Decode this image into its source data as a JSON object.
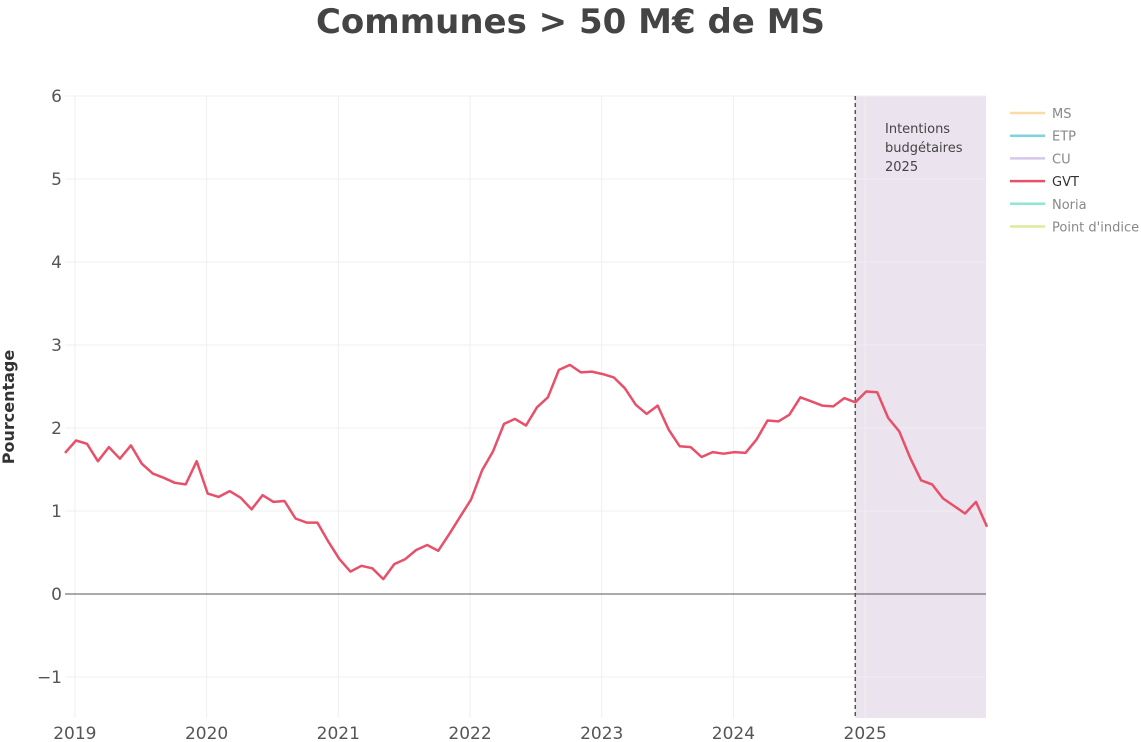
{
  "chart_data": {
    "type": "line",
    "title": "Communes > 50 M€ de MS",
    "xlabel": "",
    "ylabel": "Pourcentage",
    "x_ticks": [
      "2019",
      "2020",
      "2021",
      "2022",
      "2023",
      "2024",
      "2025"
    ],
    "y_ticks": [
      "−1",
      "0",
      "1",
      "2",
      "3",
      "4",
      "5",
      "6"
    ],
    "ylim": [
      -1.5,
      6
    ],
    "xlim": [
      "2018-12",
      "2025-12"
    ],
    "grid": true,
    "legend_position": "right",
    "legend": [
      {
        "name": "MS",
        "color": "#fcd9a8",
        "active": false
      },
      {
        "name": "ETP",
        "color": "#7fd3de",
        "active": false
      },
      {
        "name": "CU",
        "color": "#d5c8e8",
        "active": false
      },
      {
        "name": "GVT",
        "color": "#e8506a",
        "active": true
      },
      {
        "name": "Noria",
        "color": "#8ee6d8",
        "active": false
      },
      {
        "name": "Point d'indice",
        "color": "#dcea9c",
        "active": false
      }
    ],
    "annotation": {
      "lines": [
        "Intentions",
        "budgétaires",
        "2025"
      ],
      "start": "2024-12",
      "end": "2025-12",
      "shade_color": "#ebe3ee"
    },
    "series": [
      {
        "name": "GVT",
        "color": "#e8506a",
        "x": [
          "2018-12",
          "2019-01",
          "2019-02",
          "2019-03",
          "2019-04",
          "2019-05",
          "2019-06",
          "2019-07",
          "2019-08",
          "2019-09",
          "2019-10",
          "2019-11",
          "2019-12",
          "2020-01",
          "2020-02",
          "2020-03",
          "2020-04",
          "2020-05",
          "2020-06",
          "2020-07",
          "2020-08",
          "2020-09",
          "2020-10",
          "2020-11",
          "2020-12",
          "2021-01",
          "2021-02",
          "2021-03",
          "2021-04",
          "2021-05",
          "2021-06",
          "2021-07",
          "2021-08",
          "2021-09",
          "2021-10",
          "2021-11",
          "2021-12",
          "2022-01",
          "2022-02",
          "2022-03",
          "2022-04",
          "2022-05",
          "2022-06",
          "2022-07",
          "2022-08",
          "2022-09",
          "2022-10",
          "2022-11",
          "2022-12",
          "2023-01",
          "2023-02",
          "2023-03",
          "2023-04",
          "2023-05",
          "2023-06",
          "2023-07",
          "2023-08",
          "2023-09",
          "2023-10",
          "2023-11",
          "2023-12",
          "2024-01",
          "2024-02",
          "2024-03",
          "2024-04",
          "2024-05",
          "2024-06",
          "2024-07",
          "2024-08",
          "2024-09",
          "2024-10",
          "2024-11",
          "2024-12",
          "2025-01",
          "2025-02",
          "2025-03",
          "2025-04",
          "2025-05",
          "2025-06",
          "2025-07",
          "2025-08",
          "2025-09",
          "2025-10",
          "2025-11",
          "2025-12"
        ],
        "values": [
          1.7,
          1.85,
          1.81,
          1.6,
          1.77,
          1.63,
          1.79,
          1.57,
          1.45,
          1.4,
          1.34,
          1.32,
          1.6,
          1.21,
          1.17,
          1.24,
          1.16,
          1.02,
          1.19,
          1.11,
          1.12,
          0.91,
          0.86,
          0.86,
          0.63,
          0.42,
          0.27,
          0.34,
          0.31,
          0.18,
          0.36,
          0.42,
          0.53,
          0.59,
          0.52,
          0.72,
          0.93,
          1.14,
          1.49,
          1.72,
          2.05,
          2.11,
          2.03,
          2.25,
          2.37,
          2.7,
          2.76,
          2.67,
          2.68,
          2.65,
          2.61,
          2.48,
          2.28,
          2.17,
          2.27,
          1.98,
          1.78,
          1.77,
          1.65,
          1.71,
          1.69,
          1.71,
          1.7,
          1.86,
          2.09,
          2.08,
          2.16,
          2.37,
          2.32,
          2.27,
          2.26,
          2.36,
          2.31,
          2.44,
          2.43,
          2.12,
          1.96,
          1.64,
          1.37,
          1.32,
          1.15,
          1.06,
          0.97,
          1.11,
          0.81
        ]
      }
    ]
  }
}
